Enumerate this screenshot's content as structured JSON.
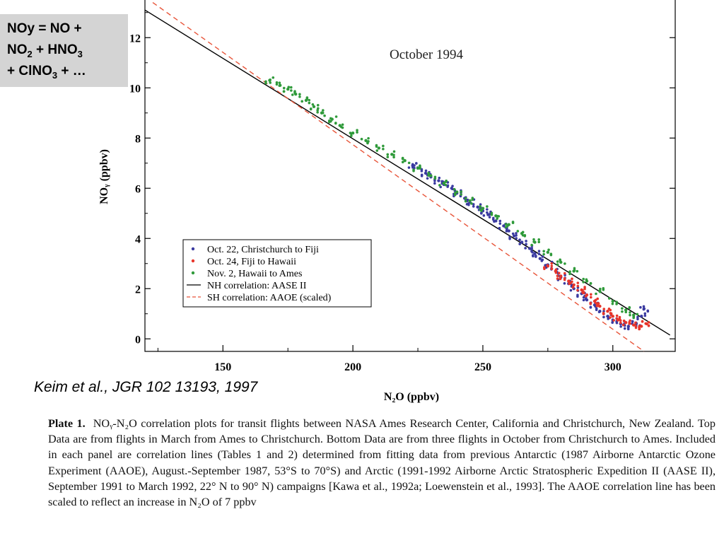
{
  "note": {
    "line1": "NOy = NO +",
    "line2_parts": [
      "NO",
      "2",
      " + HNO",
      "3"
    ],
    "line3_parts": [
      "+ ClNO",
      "3",
      " + …"
    ]
  },
  "citation": "Keim et al., JGR 102 13193, 1997",
  "chart_data": {
    "type": "scatter",
    "title": "October 1994",
    "xlabel": "N₂O (ppbv)",
    "ylabel": "NOᵧ (ppbv)",
    "xlim": [
      120,
      324
    ],
    "ylim": [
      -0.5,
      13.5
    ],
    "x_ticks": [
      150,
      200,
      250,
      300
    ],
    "y_ticks": [
      0,
      2,
      4,
      6,
      8,
      10,
      12
    ],
    "grid": false,
    "legend_position": "lower-left",
    "series": [
      {
        "name": "Oct. 22, Christchurch to Fiji",
        "color": "#3a3aa0",
        "marker": "dot",
        "points": [
          [
            223,
            6.9
          ],
          [
            225,
            6.8
          ],
          [
            228,
            6.6
          ],
          [
            230,
            6.45
          ],
          [
            233,
            6.3
          ],
          [
            235,
            6.15
          ],
          [
            238,
            6.0
          ],
          [
            240,
            5.8
          ],
          [
            243,
            5.6
          ],
          [
            245,
            5.45
          ],
          [
            248,
            5.25
          ],
          [
            250,
            5.1
          ],
          [
            252,
            4.95
          ],
          [
            255,
            4.7
          ],
          [
            258,
            4.5
          ],
          [
            260,
            4.3
          ],
          [
            262,
            4.1
          ],
          [
            265,
            3.85
          ],
          [
            268,
            3.6
          ],
          [
            270,
            3.4
          ],
          [
            272,
            3.2
          ],
          [
            275,
            2.95
          ],
          [
            278,
            2.7
          ],
          [
            280,
            2.45
          ],
          [
            283,
            2.2
          ],
          [
            285,
            2.0
          ],
          [
            288,
            1.8
          ],
          [
            290,
            1.55
          ],
          [
            293,
            1.35
          ],
          [
            295,
            1.1
          ],
          [
            298,
            0.9
          ],
          [
            300,
            0.75
          ],
          [
            303,
            0.6
          ],
          [
            306,
            0.5
          ],
          [
            309,
            0.6
          ],
          [
            311,
            0.9
          ],
          [
            312,
            1.2
          ]
        ]
      },
      {
        "name": "Oct. 24, Fiji to Hawaii",
        "color": "#e8352a",
        "marker": "dot",
        "points": [
          [
            275,
            2.9
          ],
          [
            278,
            2.7
          ],
          [
            280,
            2.5
          ],
          [
            283,
            2.3
          ],
          [
            285,
            2.15
          ],
          [
            288,
            1.95
          ],
          [
            290,
            1.75
          ],
          [
            293,
            1.5
          ],
          [
            295,
            1.3
          ],
          [
            298,
            1.1
          ],
          [
            300,
            0.9
          ],
          [
            302,
            0.75
          ],
          [
            305,
            0.65
          ],
          [
            308,
            0.55
          ],
          [
            311,
            0.5
          ],
          [
            313,
            0.6
          ]
        ]
      },
      {
        "name": "Nov. 2, Hawaii to Ames",
        "color": "#2f9a3a",
        "marker": "dot",
        "points": [
          [
            168,
            10.3
          ],
          [
            172,
            10.1
          ],
          [
            175,
            9.95
          ],
          [
            178,
            9.75
          ],
          [
            182,
            9.5
          ],
          [
            185,
            9.25
          ],
          [
            188,
            9.0
          ],
          [
            192,
            8.75
          ],
          [
            195,
            8.5
          ],
          [
            200,
            8.2
          ],
          [
            205,
            7.9
          ],
          [
            210,
            7.6
          ],
          [
            215,
            7.35
          ],
          [
            220,
            7.1
          ],
          [
            225,
            6.8
          ],
          [
            230,
            6.5
          ],
          [
            235,
            6.2
          ],
          [
            240,
            5.85
          ],
          [
            245,
            5.5
          ],
          [
            250,
            5.2
          ],
          [
            255,
            4.9
          ],
          [
            260,
            4.55
          ],
          [
            265,
            4.2
          ],
          [
            270,
            3.85
          ],
          [
            275,
            3.45
          ],
          [
            280,
            3.05
          ],
          [
            285,
            2.7
          ],
          [
            290,
            2.3
          ],
          [
            295,
            1.9
          ],
          [
            300,
            1.5
          ],
          [
            305,
            1.15
          ],
          [
            308,
            0.95
          ]
        ]
      }
    ],
    "lines": [
      {
        "name": "NH correlation:  AASE II",
        "color": "#000000",
        "style": "solid",
        "x": [
          120,
          322
        ],
        "y": [
          13.1,
          0.15
        ]
      },
      {
        "name": "SH correlation:  AAOE (scaled)",
        "color": "#e8553a",
        "style": "dashed",
        "x": [
          123,
          312
        ],
        "y": [
          13.4,
          -0.5
        ]
      }
    ]
  },
  "caption": {
    "plate_label": "Plate 1.",
    "text": "NOᵧ-N₂O correlation plots for transit flights between NASA Ames Research Center, California and Christchurch, New Zealand.  Top Data are from flights in March from Ames to Christchurch.  Bottom Data are from three flights in October from Christchurch to Ames.  Included in each panel are correlation lines (Tables 1 and 2) determined from fitting data from previous Antarctic (1987 Airborne Antarctic Ozone Experiment (AAOE), August.-September 1987, 53°S to 70°S) and Arctic (1991-1992 Airborne Arctic Stratospheric Expedition II (AASE II), September 1991 to March 1992, 22° N to 90° N) campaigns [Kawa et al., 1992a; Loewenstein et al., 1993].  The AAOE correlation line has been scaled to reflect an increase in N₂O of 7 ppbv"
  }
}
